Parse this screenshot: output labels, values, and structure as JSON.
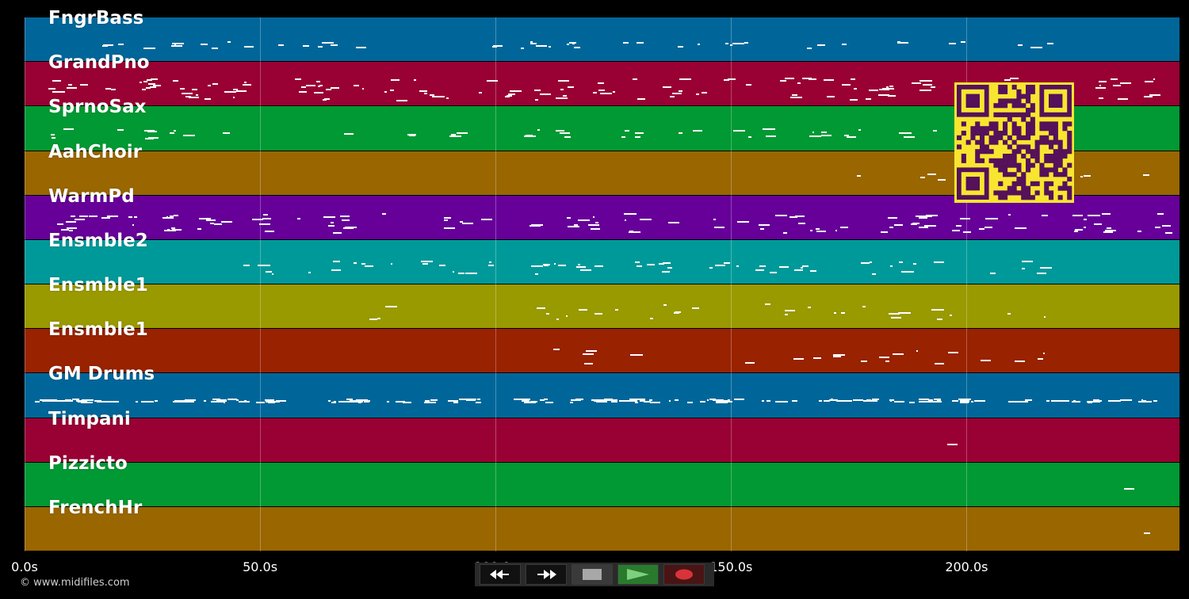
{
  "tracks": [
    {
      "name": "FngrBass",
      "color": "#006699"
    },
    {
      "name": "GrandPno",
      "color": "#990033"
    },
    {
      "name": "SprnoSax",
      "color": "#009933"
    },
    {
      "name": "AahChoir",
      "color": "#996600"
    },
    {
      "name": "WarmPd",
      "color": "#660099"
    },
    {
      "name": "Ensmble2",
      "color": "#009999"
    },
    {
      "name": "Ensmble1",
      "color": "#999900"
    },
    {
      "name": "Ensmble1",
      "color": "#992200"
    },
    {
      "name": "GM Drums",
      "color": "#006699"
    },
    {
      "name": "Timpani",
      "color": "#990033"
    },
    {
      "name": "Pizzicto",
      "color": "#009933"
    },
    {
      "name": "FrenchHr",
      "color": "#996600"
    }
  ],
  "timeline": {
    "ticks": [
      "0.0s",
      "50.0s",
      "100.0s",
      "150.0s",
      "200.0s"
    ],
    "tick_values": [
      0,
      50,
      100,
      150,
      200
    ],
    "max_seconds": 245.2
  },
  "transport": {
    "rewind_icon": "rewind-icon",
    "fast_forward_icon": "fast-forward-icon",
    "stop_icon": "stop-icon",
    "play_icon": "play-icon",
    "record_icon": "record-icon"
  },
  "footer": {
    "copyright": "© www.midifiles.com"
  },
  "qr": {
    "fg": "#55115a",
    "bg": "#f7e530"
  }
}
